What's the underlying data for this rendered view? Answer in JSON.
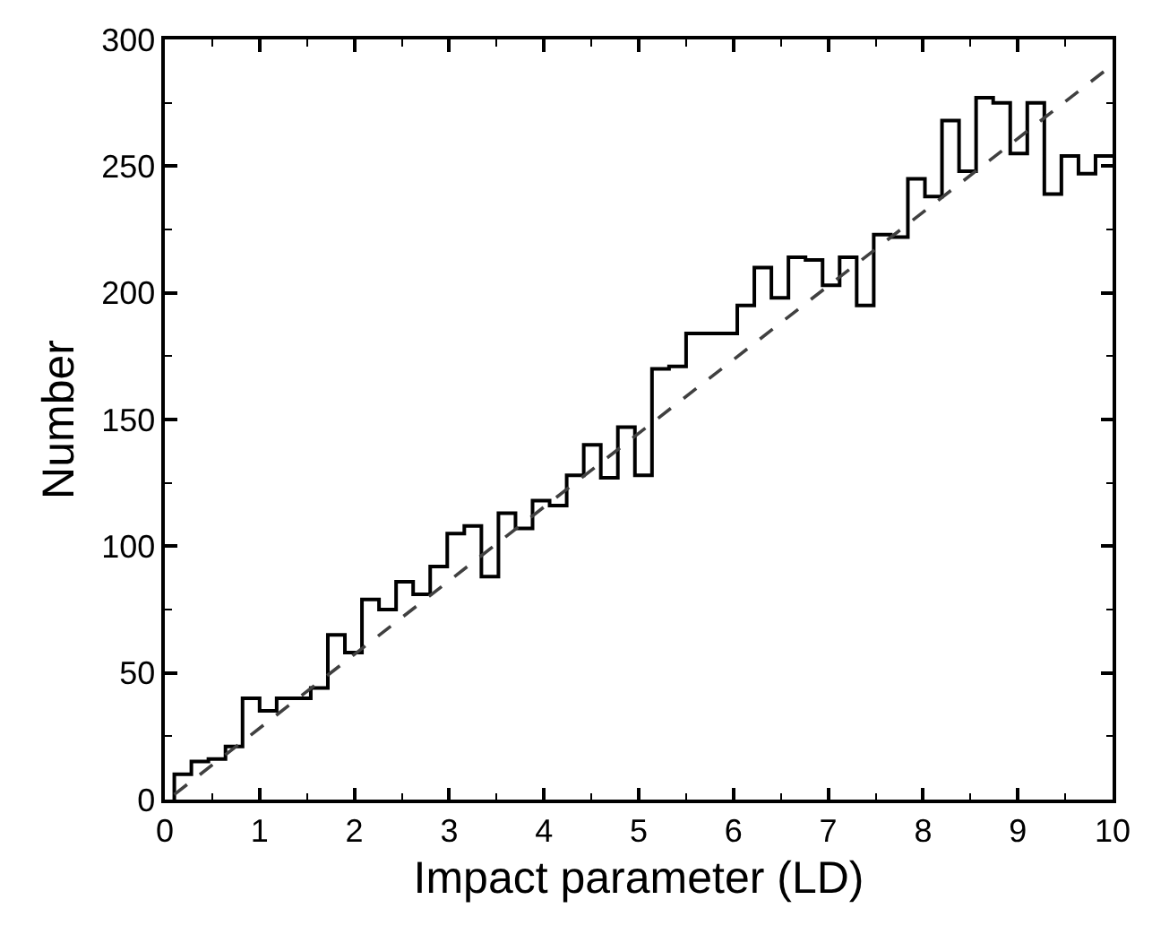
{
  "chart_data": {
    "type": "histogram",
    "xlabel": "Impact parameter (LD)",
    "ylabel": "Number",
    "xlim": [
      0,
      10
    ],
    "xticks": [
      0,
      1,
      2,
      3,
      4,
      5,
      6,
      7,
      8,
      9,
      10
    ],
    "ylim": [
      0,
      300
    ],
    "yticks": [
      0,
      50,
      100,
      150,
      200,
      250,
      300
    ],
    "series": [
      {
        "color": "#000000",
        "bins": [
          0.1,
          0.28,
          0.46,
          0.64,
          0.82,
          1.0,
          1.18,
          1.36,
          1.54,
          1.72,
          1.9,
          2.08,
          2.26,
          2.44,
          2.62,
          2.8,
          2.98,
          3.16,
          3.34,
          3.52,
          3.7,
          3.88,
          4.06,
          4.24,
          4.42,
          4.6,
          4.78,
          4.96,
          5.14,
          5.32,
          5.5,
          5.68,
          5.86,
          6.04,
          6.22,
          6.4,
          6.58,
          6.76,
          6.94,
          7.12,
          7.3,
          7.48,
          7.66,
          7.84,
          8.02,
          8.2,
          8.38,
          8.56,
          8.74,
          8.92,
          9.1,
          9.28,
          9.46,
          9.64,
          9.82,
          10.0
        ],
        "values": [
          10,
          15,
          16,
          21,
          40,
          35,
          40,
          40,
          44,
          65,
          58,
          79,
          75,
          86,
          81,
          92,
          105,
          108,
          88,
          113,
          107,
          118,
          116,
          128,
          140,
          127,
          147,
          128,
          170,
          171,
          184,
          184,
          184,
          195,
          210,
          198,
          214,
          213,
          203,
          214,
          195,
          223,
          222,
          245,
          238,
          268,
          248,
          277,
          275,
          255,
          275,
          239,
          254,
          247,
          254
        ]
      },
      {
        "type": "line",
        "color": "#404040",
        "line_style": "dashed",
        "x": [
          0.1,
          10
        ],
        "values": [
          2,
          290
        ]
      }
    ]
  }
}
